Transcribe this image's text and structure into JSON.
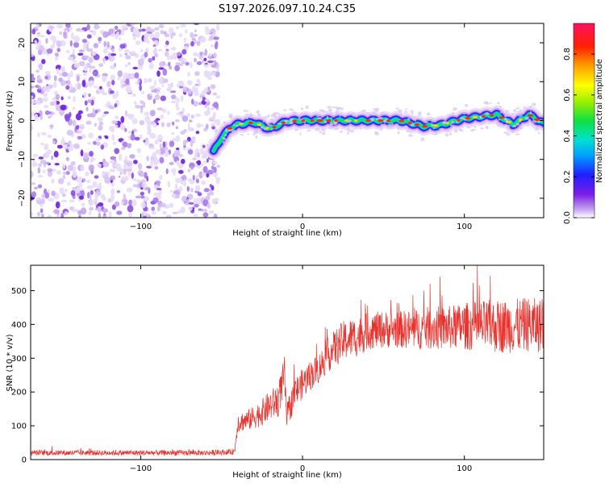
{
  "chart_data": [
    {
      "type": "heatmap",
      "title": "S197.2026.097.10.24.C35",
      "xlabel": "Height of straight line (km)",
      "ylabel": "Frequency (Hz)",
      "xlim": [
        -168,
        149
      ],
      "ylim": [
        -25,
        25
      ],
      "x_ticks": [
        -100,
        0,
        100
      ],
      "y_ticks": [
        -20,
        -10,
        0,
        10,
        20
      ],
      "colorbar": {
        "label": "Normalized spectral amplitude",
        "range": [
          0,
          0.95
        ],
        "ticks": [
          0.0,
          0.2,
          0.4,
          0.6,
          0.8
        ]
      },
      "noise_region_x": [
        -168,
        -50
      ],
      "ridge": {
        "description": "Spectral ridge near 0 Hz after onset",
        "points": [
          [
            -55,
            -8
          ],
          [
            -50,
            -4.5
          ],
          [
            -45,
            -2
          ],
          [
            -40,
            -1
          ],
          [
            -30,
            -0.5
          ],
          [
            -20,
            -2.2
          ],
          [
            -10,
            -0.2
          ],
          [
            0,
            0
          ],
          [
            20,
            0
          ],
          [
            40,
            0
          ],
          [
            60,
            0
          ],
          [
            75,
            -1.5
          ],
          [
            85,
            -1.2
          ],
          [
            100,
            0.5
          ],
          [
            110,
            1
          ],
          [
            120,
            1.5
          ],
          [
            130,
            -1
          ],
          [
            140,
            1.5
          ],
          [
            149,
            -0.8
          ]
        ]
      }
    },
    {
      "type": "line",
      "xlabel": "Height of straight line (km)",
      "ylabel": "SNR (10 * v/v)",
      "xlim": [
        -168,
        149
      ],
      "ylim": [
        0,
        575
      ],
      "x_ticks": [
        -100,
        0,
        100
      ],
      "y_ticks": [
        0,
        100,
        200,
        300,
        400,
        500
      ],
      "color": "#e8322d",
      "series": [
        {
          "name": "SNR",
          "x": [
            -168,
            -140,
            -110,
            -80,
            -60,
            -45,
            -42,
            -40,
            -35,
            -30,
            -25,
            -20,
            -15,
            -11,
            -10,
            -5,
            0,
            5,
            10,
            15,
            20,
            25,
            30,
            35,
            40,
            50,
            60,
            70,
            80,
            90,
            100,
            110,
            120,
            130,
            140,
            149
          ],
          "values": [
            20,
            20,
            20,
            20,
            20,
            22,
            25,
            110,
            115,
            125,
            140,
            160,
            175,
            250,
            120,
            195,
            225,
            250,
            270,
            305,
            330,
            350,
            360,
            365,
            380,
            385,
            385,
            385,
            390,
            390,
            395,
            395,
            395,
            395,
            400,
            395
          ],
          "noise_amplitude": [
            8,
            8,
            8,
            8,
            8,
            8,
            10,
            30,
            30,
            35,
            40,
            45,
            50,
            60,
            40,
            45,
            45,
            45,
            45,
            50,
            55,
            60,
            60,
            60,
            55,
            55,
            55,
            60,
            65,
            65,
            70,
            75,
            80,
            80,
            80,
            80
          ]
        }
      ]
    }
  ]
}
